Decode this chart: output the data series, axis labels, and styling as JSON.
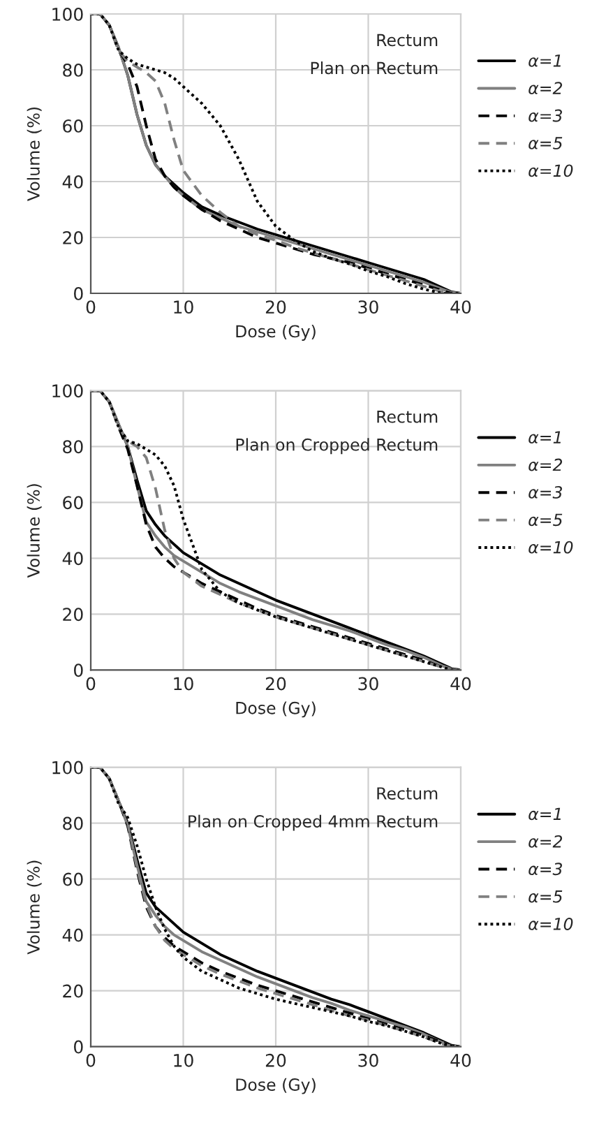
{
  "chart_data": [
    {
      "type": "line",
      "xlabel": "Dose (Gy)",
      "ylabel": "Volume (%)",
      "annotations": [
        "Rectum",
        "Plan on Rectum"
      ],
      "xlim": [
        0,
        40
      ],
      "ylim": [
        0,
        100
      ],
      "xticks": [
        0,
        10,
        20,
        30,
        40
      ],
      "yticks": [
        0,
        20,
        40,
        60,
        80,
        100
      ],
      "grid": true,
      "legend": "right",
      "x": [
        0,
        1,
        2,
        3,
        4,
        5,
        6,
        7,
        8,
        9,
        10,
        12,
        14,
        16,
        18,
        20,
        22,
        24,
        26,
        28,
        30,
        32,
        34,
        36,
        38,
        39,
        40
      ],
      "series": [
        {
          "name": "α=1",
          "color": "#000000",
          "line_style": "solid",
          "values": [
            100,
            100,
            96,
            88,
            78,
            64,
            53,
            46,
            42,
            39,
            36,
            31,
            28,
            25.5,
            23,
            21,
            19,
            17,
            15,
            13,
            11,
            9,
            7,
            5,
            2,
            0.5,
            0
          ]
        },
        {
          "name": "α=2",
          "color": "#808080",
          "line_style": "solid",
          "values": [
            100,
            100,
            96,
            88,
            78,
            64,
            53,
            46,
            42,
            38,
            35,
            30,
            27,
            24,
            22,
            20,
            18,
            16,
            14,
            12,
            10,
            8,
            6,
            4,
            1.5,
            0.3,
            0
          ]
        },
        {
          "name": "α=3",
          "color": "#000000",
          "line_style": "dashed",
          "values": [
            100,
            100,
            96,
            87,
            82,
            74,
            60,
            48,
            42,
            38,
            35,
            30,
            26,
            23,
            20,
            18,
            16,
            14,
            12.5,
            11,
            9,
            7,
            5,
            3,
            1,
            0,
            0
          ]
        },
        {
          "name": "α=5",
          "color": "#808080",
          "line_style": "dashed",
          "values": [
            100,
            100,
            96,
            87,
            83,
            81,
            79,
            76,
            68,
            55,
            44,
            35,
            29,
            24,
            21,
            19,
            16.5,
            14.5,
            12.5,
            10.5,
            8.5,
            6.5,
            4.5,
            2.5,
            0.5,
            0,
            0
          ]
        },
        {
          "name": "α=10",
          "color": "#000000",
          "line_style": "dotted",
          "values": [
            100,
            100,
            96,
            87,
            84,
            82,
            81,
            80,
            79,
            77,
            74,
            68,
            60,
            48,
            33,
            24,
            19,
            15,
            12.5,
            10.5,
            8,
            6,
            3.5,
            1.5,
            0,
            0,
            0
          ]
        }
      ]
    },
    {
      "type": "line",
      "xlabel": "Dose (Gy)",
      "ylabel": "Volume (%)",
      "annotations": [
        "Rectum",
        "Plan on Cropped Rectum"
      ],
      "xlim": [
        0,
        40
      ],
      "ylim": [
        0,
        100
      ],
      "xticks": [
        0,
        10,
        20,
        30,
        40
      ],
      "yticks": [
        0,
        20,
        40,
        60,
        80,
        100
      ],
      "grid": true,
      "legend": "right",
      "x": [
        0,
        1,
        2,
        3,
        4,
        5,
        6,
        7,
        8,
        9,
        10,
        12,
        14,
        16,
        18,
        20,
        22,
        24,
        26,
        28,
        30,
        32,
        34,
        36,
        38,
        39,
        40
      ],
      "series": [
        {
          "name": "α=1",
          "color": "#000000",
          "line_style": "solid",
          "values": [
            100,
            100,
            96,
            88,
            80,
            68,
            57,
            52,
            48,
            45,
            42,
            38,
            34,
            31,
            28,
            25,
            22.5,
            20,
            17.5,
            15,
            12.5,
            10,
            7.5,
            5,
            2,
            0.5,
            0
          ]
        },
        {
          "name": "α=2",
          "color": "#808080",
          "line_style": "solid",
          "values": [
            100,
            100,
            96,
            88,
            80,
            66,
            53,
            48,
            44,
            41,
            39,
            35,
            31,
            28,
            25.5,
            23,
            20.5,
            18,
            16,
            14,
            11.5,
            9,
            7,
            4.5,
            1.5,
            0.3,
            0
          ]
        },
        {
          "name": "α=3",
          "color": "#000000",
          "line_style": "dashed",
          "values": [
            100,
            100,
            96,
            87,
            79,
            66,
            52,
            44,
            40,
            37,
            35,
            31,
            28,
            25,
            22,
            19.5,
            17.5,
            15.5,
            13.5,
            11.5,
            9.5,
            7.5,
            5.5,
            3.5,
            1,
            0,
            0
          ]
        },
        {
          "name": "α=5",
          "color": "#808080",
          "line_style": "dashed",
          "values": [
            100,
            100,
            96,
            87,
            82,
            80,
            76,
            65,
            50,
            40,
            35,
            30,
            27,
            24,
            21.5,
            19,
            17,
            15,
            13,
            11,
            9,
            7,
            5,
            3,
            1,
            0,
            0
          ]
        },
        {
          "name": "α=10",
          "color": "#000000",
          "line_style": "dotted",
          "values": [
            100,
            100,
            96,
            87,
            82,
            81,
            79,
            77,
            73,
            66,
            54,
            36,
            28,
            24,
            21.5,
            19,
            17,
            15,
            13,
            11,
            9,
            7,
            5,
            3,
            1,
            0,
            0
          ]
        }
      ]
    },
    {
      "type": "line",
      "xlabel": "Dose (Gy)",
      "ylabel": "Volume (%)",
      "annotations": [
        "Rectum",
        "Plan on Cropped 4mm Rectum"
      ],
      "xlim": [
        0,
        40
      ],
      "ylim": [
        0,
        100
      ],
      "xticks": [
        0,
        10,
        20,
        30,
        40
      ],
      "yticks": [
        0,
        20,
        40,
        60,
        80,
        100
      ],
      "grid": true,
      "legend": "right",
      "x": [
        0,
        1,
        2,
        3,
        4,
        5,
        6,
        7,
        8,
        9,
        10,
        12,
        14,
        16,
        18,
        20,
        22,
        24,
        26,
        28,
        30,
        32,
        34,
        36,
        38,
        39,
        40
      ],
      "series": [
        {
          "name": "α=1",
          "color": "#000000",
          "line_style": "solid",
          "values": [
            100,
            100,
            96,
            88,
            80,
            67,
            55,
            50,
            47,
            44,
            41,
            37,
            33,
            30,
            27,
            24.5,
            22,
            19.5,
            17,
            15,
            12.5,
            10,
            7.5,
            5,
            2,
            0.5,
            0
          ]
        },
        {
          "name": "α=2",
          "color": "#808080",
          "line_style": "solid",
          "values": [
            100,
            100,
            96,
            88,
            79,
            65,
            52,
            47,
            43,
            40,
            38,
            34,
            31,
            28,
            25,
            22.5,
            20,
            17.5,
            15.5,
            13,
            11,
            9,
            7,
            4.5,
            1.5,
            0.3,
            0
          ]
        },
        {
          "name": "α=3",
          "color": "#000000",
          "line_style": "dashed",
          "values": [
            100,
            100,
            96,
            88,
            79,
            63,
            50,
            43,
            39,
            36,
            34,
            30,
            27,
            24.5,
            22,
            20,
            18,
            16,
            14,
            12,
            10,
            8,
            6,
            4,
            1.5,
            0.3,
            0
          ]
        },
        {
          "name": "α=5",
          "color": "#808080",
          "line_style": "dashed",
          "values": [
            100,
            100,
            96,
            88,
            80,
            64,
            51,
            43,
            38,
            35,
            33,
            29,
            26,
            23.5,
            21,
            19,
            17,
            15,
            13,
            11,
            9.5,
            7.5,
            5.5,
            3.5,
            1,
            0.2,
            0
          ]
        },
        {
          "name": "α=10",
          "color": "#000000",
          "line_style": "dotted",
          "values": [
            100,
            100,
            96,
            87,
            82,
            72,
            60,
            50,
            42,
            36,
            32,
            27,
            24,
            21,
            19,
            17,
            15.5,
            14,
            12.5,
            11,
            9,
            7.5,
            5.5,
            3.5,
            1,
            0.2,
            0
          ]
        }
      ]
    }
  ]
}
